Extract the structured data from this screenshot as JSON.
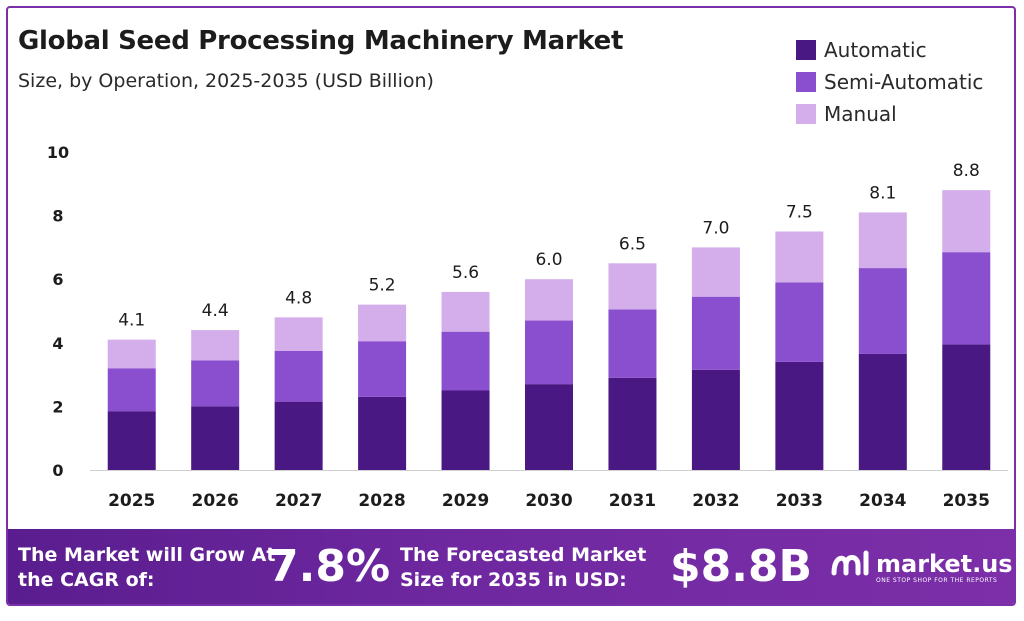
{
  "title": "Global Seed Processing Machinery Market",
  "subtitle": "Size, by Operation, 2025-2035 (USD Billion)",
  "legend": [
    {
      "label": "Automatic",
      "color": "#4a1882"
    },
    {
      "label": "Semi-Automatic",
      "color": "#8a4fce"
    },
    {
      "label": "Manual",
      "color": "#d3aeea"
    }
  ],
  "chart_data": {
    "type": "bar",
    "stacked": true,
    "categories": [
      "2025",
      "2026",
      "2027",
      "2028",
      "2029",
      "2030",
      "2031",
      "2032",
      "2033",
      "2034",
      "2035"
    ],
    "series": [
      {
        "name": "Automatic",
        "values": [
          1.85,
          2.0,
          2.15,
          2.3,
          2.5,
          2.7,
          2.9,
          3.15,
          3.4,
          3.65,
          3.95
        ]
      },
      {
        "name": "Semi-Automatic",
        "values": [
          1.35,
          1.45,
          1.6,
          1.75,
          1.85,
          2.0,
          2.15,
          2.3,
          2.5,
          2.7,
          2.9
        ]
      },
      {
        "name": "Manual",
        "values": [
          0.9,
          0.95,
          1.05,
          1.15,
          1.25,
          1.3,
          1.45,
          1.55,
          1.6,
          1.75,
          1.95
        ]
      }
    ],
    "totals_labels": [
      "4.1",
      "4.4",
      "4.8",
      "5.2",
      "5.6",
      "6.0",
      "6.5",
      "7.0",
      "7.5",
      "8.1",
      "8.8"
    ],
    "ylim": [
      0,
      10
    ],
    "yticks": [
      "0",
      "2",
      "4",
      "6",
      "8",
      "10"
    ],
    "grid": false,
    "legend_position": "top-right"
  },
  "footer": {
    "cagr_text": "The Market will Grow At the CAGR of:",
    "cagr_value": "7.8%",
    "size_text": "The Forecasted Market Size for 2035 in USD:",
    "size_value": "$8.8B",
    "logo_text": "market.us",
    "logo_tagline": "ONE STOP SHOP FOR THE REPORTS",
    "logo_icon": "market-us-logo-icon"
  }
}
